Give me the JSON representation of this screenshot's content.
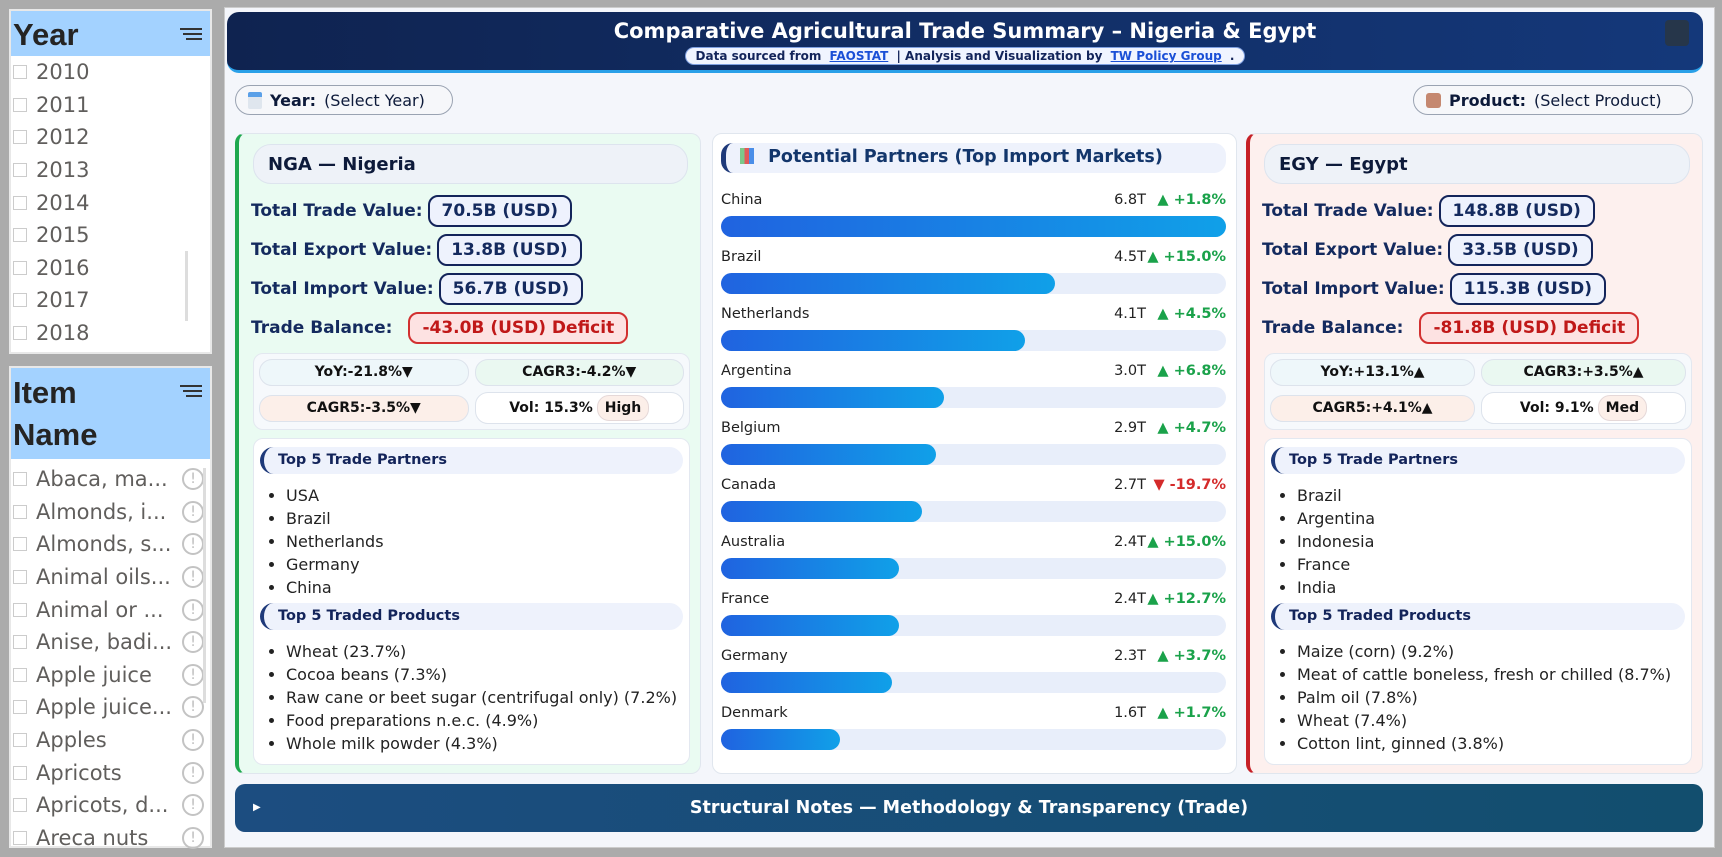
{
  "year_slicer": {
    "title": "Year",
    "items": [
      "2010",
      "2011",
      "2012",
      "2013",
      "2014",
      "2015",
      "2016",
      "2017",
      "2018"
    ]
  },
  "item_slicer": {
    "title_line1": "Item",
    "title_line2": "Name",
    "items": [
      "Abaca, ma...",
      "Almonds, i...",
      "Almonds, s...",
      "Animal oils...",
      "Animal or ...",
      "Anise, badi...",
      "Apple juice",
      "Apple juice...",
      "Apples",
      "Apricots",
      "Apricots, d...",
      "Areca nuts"
    ]
  },
  "header": {
    "title": "Comparative Agricultural Trade Summary – Nigeria & Egypt",
    "src_prefix": "Data sourced from",
    "src_link": "FAOSTAT",
    "src_mid": "| Analysis and Visualization by",
    "src_link2": "TW Policy Group",
    "src_end": "."
  },
  "filters": {
    "year_label": "Year:",
    "year_value": "(Select Year)",
    "product_label": "Product:",
    "product_value": "(Select Product)"
  },
  "colors": {
    "up": "#1aa24a",
    "down": "#d42a2a",
    "nga_accent": "#1fa84f",
    "egy_accent": "#c62026"
  },
  "labels": {
    "trade": "Total Trade Value:",
    "export": "Total Export Value:",
    "import": "Total Import Value:",
    "balance": "Trade Balance:",
    "partners": "Top 5 Trade Partners",
    "products": "Top 5 Traded Products",
    "vol": "Vol:"
  },
  "nga": {
    "title": "NGA — Nigeria",
    "trade": "70.5B (USD)",
    "export": "13.8B (USD)",
    "import": "56.7B (USD)",
    "balance": "-43.0B (USD) Deficit",
    "yoy": "YoY:-21.8%▼",
    "cagr3": "CAGR3:-4.2%▼",
    "cagr5": "CAGR5:-3.5%▼",
    "vol": "15.3%",
    "vol_tag": "High",
    "partners": [
      "USA",
      "Brazil",
      "Netherlands",
      "Germany",
      "China"
    ],
    "products": [
      "Wheat (23.7%)",
      "Cocoa beans (7.3%)",
      "Raw cane or beet sugar (centrifugal only) (7.2%)",
      "Food preparations n.e.c. (4.9%)",
      "Whole milk powder (4.3%)"
    ]
  },
  "egy": {
    "title": "EGY — Egypt",
    "trade": "148.8B (USD)",
    "export": "33.5B (USD)",
    "import": "115.3B (USD)",
    "balance": "-81.8B (USD) Deficit",
    "yoy": "YoY:+13.1%▲",
    "cagr3": "CAGR3:+3.5%▲",
    "cagr5": "CAGR5:+4.1%▲",
    "vol": "9.1%",
    "vol_tag": "Med",
    "partners": [
      "Brazil",
      "Argentina",
      "Indonesia",
      "France",
      "India"
    ],
    "products": [
      "Maize (corn) (9.2%)",
      "Meat of cattle boneless, fresh or chilled (8.7%)",
      "Palm oil (7.8%)",
      "Wheat (7.4%)",
      "Cotton lint, ginned (3.8%)"
    ]
  },
  "potential": {
    "title": "Potential Partners (Top Import Markets)",
    "rows": [
      {
        "name": "China",
        "value": 6.8,
        "label": "6.8T",
        "change": "▲ +1.8%",
        "dir": "up"
      },
      {
        "name": "Brazil",
        "value": 4.5,
        "label": "4.5T",
        "change": "▲ +15.0%",
        "dir": "up"
      },
      {
        "name": "Netherlands",
        "value": 4.1,
        "label": "4.1T",
        "change": "▲ +4.5%",
        "dir": "up"
      },
      {
        "name": "Argentina",
        "value": 3.0,
        "label": "3.0T",
        "change": "▲ +6.8%",
        "dir": "up"
      },
      {
        "name": "Belgium",
        "value": 2.9,
        "label": "2.9T",
        "change": "▲ +4.7%",
        "dir": "up"
      },
      {
        "name": "Canada",
        "value": 2.7,
        "label": "2.7T",
        "change": "▼ -19.7%",
        "dir": "down"
      },
      {
        "name": "Australia",
        "value": 2.4,
        "label": "2.4T",
        "change": "▲ +15.0%",
        "dir": "up"
      },
      {
        "name": "France",
        "value": 2.4,
        "label": "2.4T",
        "change": "▲ +12.7%",
        "dir": "up"
      },
      {
        "name": "Germany",
        "value": 2.3,
        "label": "2.3T",
        "change": "▲ +3.7%",
        "dir": "up"
      },
      {
        "name": "Denmark",
        "value": 1.6,
        "label": "1.6T",
        "change": "▲ +1.7%",
        "dir": "up"
      }
    ]
  },
  "notes": {
    "label": "Structural Notes — Methodology & Transparency (Trade)"
  }
}
